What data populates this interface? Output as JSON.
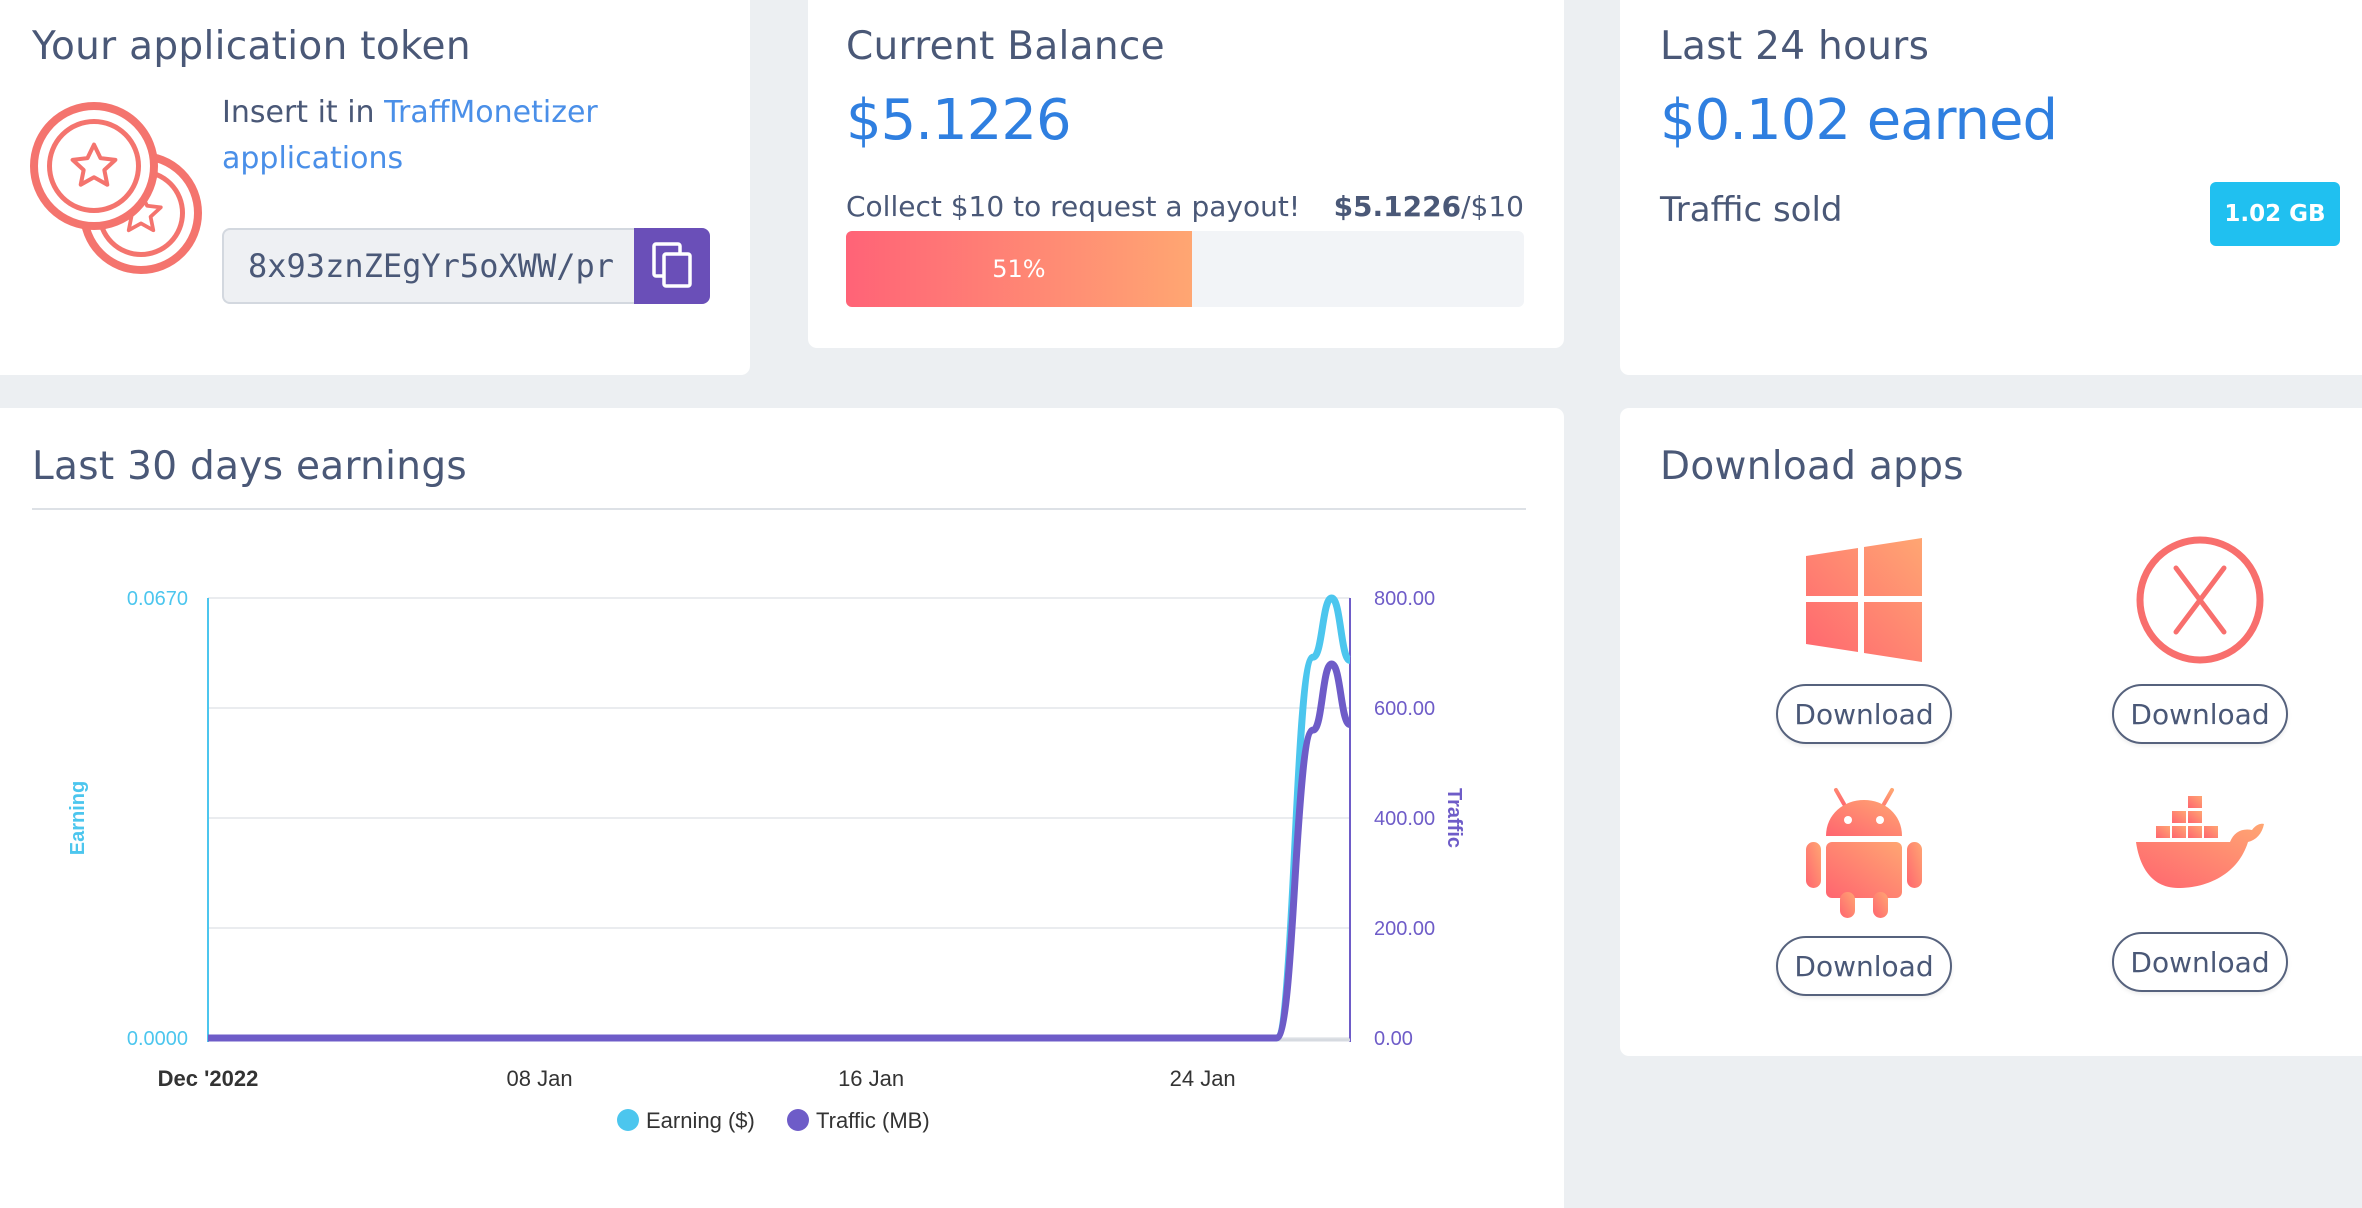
{
  "token_card": {
    "title": "Your application token",
    "insert_prefix": "Insert it in ",
    "insert_link": "TraffMonetizer applications",
    "token_value": "8x93znZEgYr5oXWW/pr"
  },
  "balance_card": {
    "title": "Current Balance",
    "balance": "$5.1226",
    "collect_text": "Collect $10 to request a payout!",
    "collect_current": "$5.1226",
    "collect_target": "/$10",
    "progress_percent": 51,
    "progress_label": "51%"
  },
  "last24_card": {
    "title": "Last 24 hours",
    "earned": "$0.102 earned",
    "traffic_label": "Traffic sold",
    "traffic_value": "1.02 GB"
  },
  "earnings_card": {
    "title": "Last 30 days earnings"
  },
  "download_card": {
    "title": "Download apps",
    "items": [
      {
        "icon": "windows-icon",
        "label": "Download"
      },
      {
        "icon": "macos-icon",
        "label": "Download"
      },
      {
        "icon": "android-icon",
        "label": "Download"
      },
      {
        "icon": "docker-icon",
        "label": "Download"
      }
    ]
  },
  "colors": {
    "accent_blue": "#2f7fe0",
    "earning_series": "#4cc6ee",
    "traffic_series": "#6e5cc8",
    "icon_gradient_start": "#ff6b6b",
    "icon_gradient_end": "#ffa672"
  },
  "chart_data": {
    "type": "line",
    "x_tick_labels": [
      "Dec '2022",
      "08 Jan",
      "16 Jan",
      "24 Jan"
    ],
    "y_left": {
      "label": "Earning",
      "ticks": [
        "0.0670",
        "0.0000"
      ],
      "range": [
        0,
        0.067
      ]
    },
    "y_right": {
      "label": "Traffic",
      "ticks": [
        "800.00",
        "600.00",
        "400.00",
        "200.00",
        "0.00"
      ],
      "range": [
        0,
        800
      ]
    },
    "grid": true,
    "legend_position": "bottom",
    "x_range_days": [
      0,
      31
    ],
    "series": [
      {
        "name": "Earning ($)",
        "axis": "left",
        "points": [
          [
            0,
            0
          ],
          [
            29,
            0
          ],
          [
            30,
            0.058
          ],
          [
            30.5,
            0.067
          ],
          [
            31,
            0.0575
          ]
        ]
      },
      {
        "name": "Traffic (MB)",
        "axis": "right",
        "points": [
          [
            0,
            0
          ],
          [
            29,
            0
          ],
          [
            30,
            560
          ],
          [
            30.5,
            680
          ],
          [
            31,
            570
          ]
        ]
      }
    ]
  }
}
